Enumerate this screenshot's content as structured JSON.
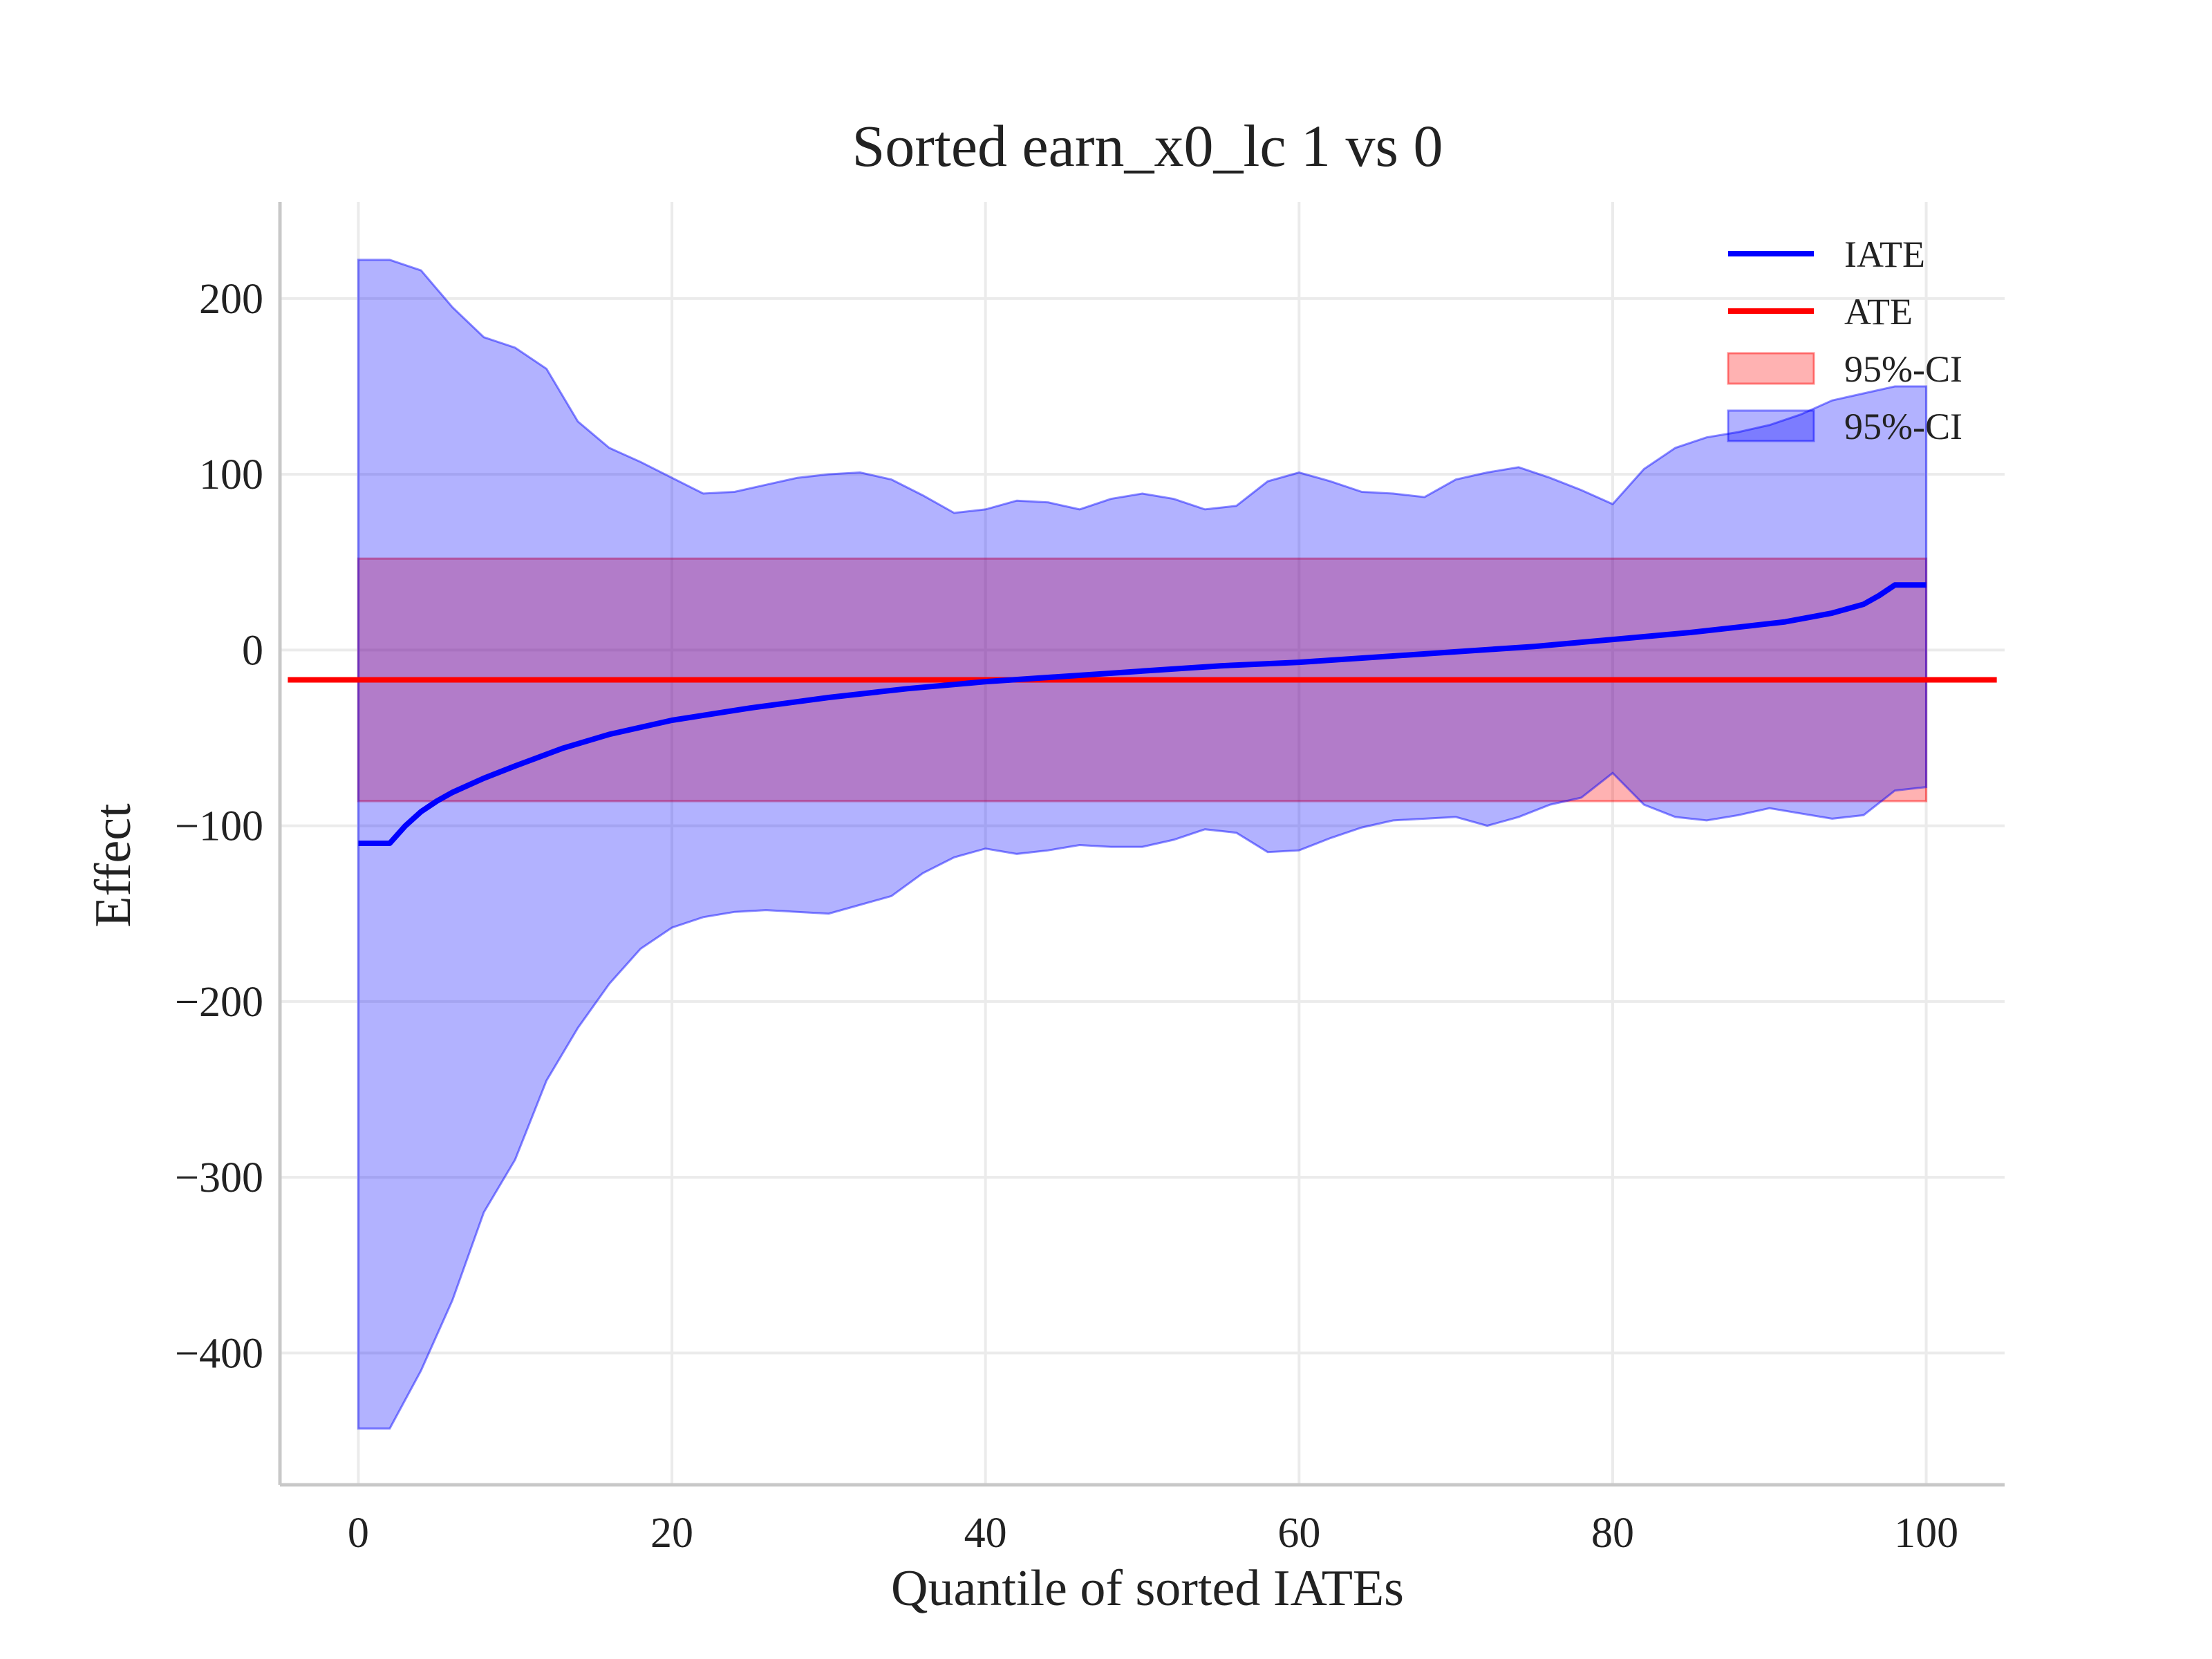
{
  "chart_data": {
    "type": "line",
    "title": "Sorted earn_x0_lc 1 vs 0",
    "xlabel": "Quantile of sorted IATEs",
    "ylabel": "Effect",
    "xlim": [
      -5,
      105
    ],
    "ylim": [
      -475,
      255
    ],
    "xticks": [
      0,
      20,
      40,
      60,
      80,
      100
    ],
    "yticks": [
      -400,
      -300,
      -200,
      -100,
      0,
      100,
      200
    ],
    "ytick_labels": [
      "−400",
      "−300",
      "−200",
      "−100",
      "0",
      "100",
      "200"
    ],
    "grid": true,
    "legend_position": "top-right",
    "legend": [
      "IATE",
      "ATE",
      "95%-CI",
      "95%-CI"
    ],
    "ate": {
      "name": "ATE",
      "value": -17,
      "color": "#ff0000"
    },
    "ate_ci": {
      "name": "95%-CI",
      "lower": -86,
      "upper": 52,
      "color": "#ff0000"
    },
    "iate": {
      "name": "IATE",
      "color": "#0000ff",
      "x": [
        0,
        2,
        3,
        4,
        5,
        6,
        8,
        10,
        13,
        16,
        20,
        25,
        30,
        35,
        40,
        45,
        50,
        55,
        60,
        65,
        70,
        75,
        80,
        85,
        88,
        91,
        94,
        96,
        97,
        98,
        100
      ],
      "y": [
        -110,
        -110,
        -100,
        -92,
        -86,
        -81,
        -73,
        -66,
        -56,
        -48,
        -40,
        -33,
        -27,
        -22,
        -18,
        -15,
        -12,
        -9,
        -7,
        -4,
        -1,
        2,
        6,
        10,
        13,
        16,
        21,
        26,
        31,
        37,
        37
      ]
    },
    "iate_ci": {
      "name": "95%-CI",
      "color": "#0000ff",
      "x": [
        0,
        2,
        4,
        6,
        8,
        10,
        12,
        14,
        16,
        18,
        20,
        22,
        24,
        26,
        28,
        30,
        32,
        34,
        36,
        38,
        40,
        42,
        44,
        46,
        48,
        50,
        52,
        54,
        56,
        58,
        60,
        62,
        64,
        66,
        68,
        70,
        72,
        74,
        76,
        78,
        80,
        82,
        84,
        86,
        88,
        90,
        92,
        94,
        96,
        98,
        100
      ],
      "upper": [
        222,
        222,
        216,
        195,
        178,
        172,
        160,
        130,
        115,
        107,
        98,
        89,
        90,
        94,
        98,
        100,
        101,
        97,
        88,
        78,
        80,
        85,
        84,
        80,
        86,
        89,
        86,
        80,
        82,
        96,
        101,
        96,
        90,
        89,
        87,
        97,
        101,
        104,
        98,
        91,
        83,
        103,
        115,
        121,
        124,
        128,
        134,
        142,
        146,
        150,
        150
      ],
      "lower": [
        -443,
        -443,
        -410,
        -370,
        -320,
        -290,
        -245,
        -215,
        -190,
        -170,
        -158,
        -152,
        -149,
        -148,
        -149,
        -150,
        -145,
        -140,
        -127,
        -118,
        -113,
        -116,
        -114,
        -111,
        -112,
        -112,
        -108,
        -102,
        -104,
        -115,
        -114,
        -107,
        -101,
        -97,
        -96,
        -95,
        -100,
        -95,
        -88,
        -84,
        -70,
        -88,
        -95,
        -97,
        -94,
        -90,
        -93,
        -96,
        -94,
        -80,
        -78
      ]
    }
  }
}
